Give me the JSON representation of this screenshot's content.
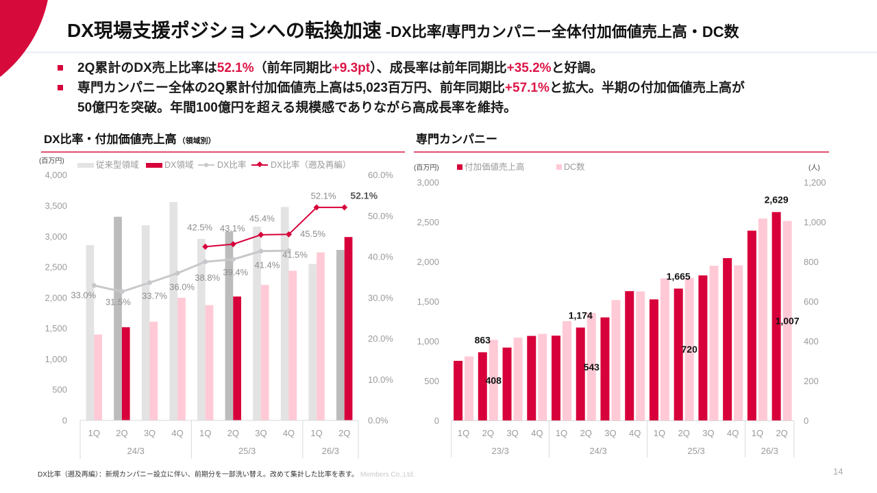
{
  "slide": {
    "title_main": "DX現場支援ポジションへの転換加速",
    "title_sub": "-DX比率/専門カンパニー全体付加価値売上高・DC数",
    "page_number": "14"
  },
  "bullets": [
    {
      "segments": [
        {
          "text": "2Q累計のDX売上比率は",
          "highlight": false
        },
        {
          "text": "52.1%",
          "highlight": true
        },
        {
          "text": "（前年同期比",
          "highlight": false
        },
        {
          "text": "+9.3pt",
          "highlight": true
        },
        {
          "text": "）、成長率は前年同期比",
          "highlight": false
        },
        {
          "text": "+35.2%",
          "highlight": true
        },
        {
          "text": "と好調。",
          "highlight": false
        }
      ]
    },
    {
      "segments": [
        {
          "text": "専門カンパニー全体の2Q累計付加価値売上高は5,023百万円、前年同期比",
          "highlight": false
        },
        {
          "text": "+57.1%",
          "highlight": true
        },
        {
          "text": "と拡大。半期の付加価値売上高が",
          "highlight": false
        },
        {
          "text": "50億円を突破。年間100億円を超える規模感でありながら高成長率を維持。",
          "highlight": false
        }
      ]
    }
  ],
  "sections": {
    "left": {
      "title": "DX比率・付加価値売上高",
      "subtitle": "（領域別）"
    },
    "right": {
      "title": "専門カンパニー"
    }
  },
  "legends": {
    "left": {
      "unit": "(百万円)",
      "items": [
        "従来型領域",
        "DX領域",
        "DX比率",
        "DX比率（遡及再編）"
      ]
    },
    "right": {
      "unit_left": "(百万円)",
      "unit_right": "(人)",
      "items": [
        "付加価値売上高",
        "DC数"
      ]
    }
  },
  "footer": {
    "note": "DX比率（遡及再編）：新規カンパニー設立に伴い、前期分を一部洗い替え。改めて集計した比率を表す。",
    "company": "Members Co.,Ltd."
  },
  "colors": {
    "accent": "#d7003a",
    "pink": "#ffcad6",
    "gray_light": "#e3e3e3",
    "gray_dark": "#bcbcbc",
    "line_gray": "#c8c8cc",
    "rule": "#e0506e"
  },
  "chart_data": [
    {
      "type": "bar+line",
      "title": "DX比率・付加価値売上高（領域別）",
      "ylabel": "(百万円)",
      "y2label": "",
      "categories": [
        "1Q",
        "2Q",
        "3Q",
        "4Q",
        "1Q",
        "2Q",
        "3Q",
        "4Q",
        "1Q",
        "2Q"
      ],
      "category_groups": [
        {
          "label": "24/3",
          "count": 4
        },
        {
          "label": "25/3",
          "count": 4
        },
        {
          "label": "26/3",
          "count": 2
        }
      ],
      "ylim": [
        0,
        4000
      ],
      "yticks": [
        0,
        500,
        1000,
        1500,
        2000,
        2500,
        3000,
        3500,
        4000
      ],
      "ytick_labels": [
        "0",
        "500",
        "1,000",
        "1,500",
        "2,000",
        "2,500",
        "3,000",
        "3,500",
        "4,000"
      ],
      "y2lim": [
        0,
        60
      ],
      "y2ticks": [
        0,
        10,
        20,
        30,
        40,
        50,
        60
      ],
      "y2tick_labels": [
        "0.0%",
        "10.0%",
        "20.0%",
        "30.0%",
        "40.0%",
        "50.0%",
        "60.0%"
      ],
      "highlight_indices": [
        1,
        5,
        9
      ],
      "legend": "top",
      "grid": false,
      "series": [
        {
          "name": "従来型領域",
          "type": "bar",
          "axis": "left",
          "values": [
            2860,
            3320,
            3180,
            3560,
            2960,
            3080,
            3160,
            3480,
            2550,
            2780
          ]
        },
        {
          "name": "DX領域",
          "type": "bar",
          "axis": "left",
          "values": [
            1400,
            1520,
            1610,
            2000,
            1880,
            2020,
            2210,
            2440,
            2740,
            2990
          ]
        },
        {
          "name": "DX比率",
          "type": "line",
          "axis": "right",
          "values": [
            33.0,
            31.5,
            33.7,
            36.0,
            38.8,
            39.4,
            41.4,
            41.5,
            null,
            null
          ],
          "data_labels": [
            "33.0%",
            "31.5%",
            "33.7%",
            "36.0%",
            "38.8%",
            "39.4%",
            "41.4%",
            "41.5%",
            null,
            null
          ]
        },
        {
          "name": "DX比率（遡及再編）",
          "type": "line",
          "axis": "right",
          "values": [
            null,
            null,
            null,
            null,
            42.5,
            43.1,
            45.4,
            45.5,
            52.1,
            52.1
          ],
          "data_labels": [
            null,
            null,
            null,
            null,
            "42.5%",
            "43.1%",
            "45.4%",
            "45.5%",
            "52.1%",
            "52.1%"
          ],
          "emphasized_label_index": 9
        }
      ]
    },
    {
      "type": "bar",
      "title": "専門カンパニー",
      "ylabel": "(百万円)",
      "y2label": "(人)",
      "categories": [
        "1Q",
        "2Q",
        "3Q",
        "4Q",
        "1Q",
        "2Q",
        "3Q",
        "4Q",
        "1Q",
        "2Q",
        "3Q",
        "4Q",
        "1Q",
        "2Q"
      ],
      "category_groups": [
        {
          "label": "23/3",
          "count": 4
        },
        {
          "label": "24/3",
          "count": 4
        },
        {
          "label": "25/3",
          "count": 4
        },
        {
          "label": "26/3",
          "count": 2
        }
      ],
      "ylim": [
        0,
        3000
      ],
      "yticks": [
        0,
        500,
        1000,
        1500,
        2000,
        2500,
        3000
      ],
      "ytick_labels": [
        "0",
        "500",
        "1,000",
        "1,500",
        "2,000",
        "2,500",
        "3,000"
      ],
      "y2lim": [
        0,
        1200
      ],
      "y2ticks": [
        0,
        200,
        400,
        600,
        800,
        1000,
        1200
      ],
      "y2tick_labels": [
        "0",
        "200",
        "400",
        "600",
        "800",
        "1,000",
        "1,200"
      ],
      "legend": "top-left",
      "grid": false,
      "series": [
        {
          "name": "付加価値売上高",
          "type": "bar",
          "axis": "left",
          "values": [
            755,
            863,
            922,
            1069,
            1072,
            1174,
            1302,
            1633,
            1529,
            1665,
            1831,
            2049,
            2395,
            2629
          ],
          "data_labels": [
            null,
            "863",
            null,
            null,
            null,
            "1,174",
            null,
            null,
            null,
            "1,665",
            null,
            null,
            null,
            "2,629"
          ]
        },
        {
          "name": "DC数",
          "type": "bar",
          "axis": "right",
          "values": [
            324,
            408,
            419,
            438,
            502,
            543,
            608,
            652,
            718,
            720,
            781,
            783,
            1019,
            1007
          ],
          "data_labels": [
            null,
            "408",
            null,
            null,
            null,
            "543",
            null,
            null,
            null,
            "720",
            null,
            null,
            null,
            "1,007"
          ]
        }
      ]
    }
  ]
}
